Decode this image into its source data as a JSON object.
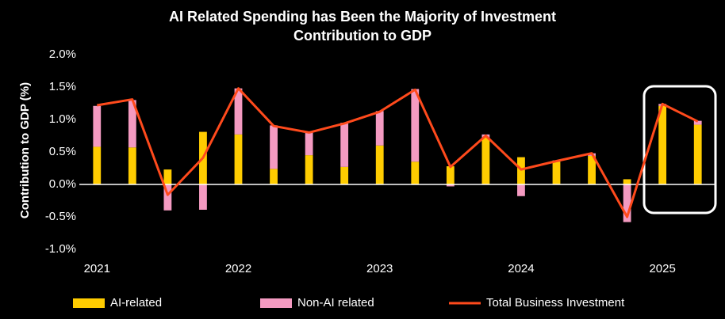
{
  "chart_data": {
    "type": "bar",
    "title": [
      "AI Related Spending has Been the Majority of Investment",
      "Contribution to GDP"
    ],
    "y_label": "Contribution to GDP (%)",
    "categories": [
      "2021",
      null,
      null,
      null,
      "2022",
      null,
      null,
      null,
      "2023",
      null,
      null,
      null,
      "2024",
      null,
      null,
      null,
      "2025",
      null
    ],
    "ylim": [
      -1.0,
      2.0
    ],
    "yticks": [
      {
        "value": -1.0,
        "label": "-1.0%"
      },
      {
        "value": -0.5,
        "label": "-0.5%"
      },
      {
        "value": 0.0,
        "label": "0.0%"
      },
      {
        "value": 0.5,
        "label": "0.5%"
      },
      {
        "value": 1.0,
        "label": "1.0%"
      },
      {
        "value": 1.5,
        "label": "1.5%"
      },
      {
        "value": 2.0,
        "label": "2.0%"
      }
    ],
    "stacked": true,
    "grid": false,
    "legend": "bottom",
    "series": [
      {
        "name": "AI-related",
        "type": "bar",
        "color": "#ffcc00",
        "values": [
          0.58,
          0.57,
          0.23,
          0.81,
          0.77,
          0.24,
          0.45,
          0.27,
          0.6,
          0.35,
          0.28,
          0.72,
          0.42,
          0.35,
          0.44,
          0.08,
          1.21,
          0.92
        ]
      },
      {
        "name": "Non-AI related",
        "type": "bar",
        "color": "#f49ac1",
        "values": [
          0.63,
          0.73,
          -0.4,
          -0.39,
          0.71,
          0.67,
          0.35,
          0.68,
          0.53,
          1.12,
          -0.03,
          0.05,
          -0.18,
          0.02,
          0.04,
          -0.58,
          0.03,
          0.06
        ]
      },
      {
        "name": "Total Business Investment",
        "type": "line",
        "color": "#ff4a1c",
        "values": [
          1.22,
          1.31,
          -0.16,
          0.41,
          1.48,
          0.9,
          0.8,
          0.94,
          1.12,
          1.46,
          0.27,
          0.75,
          0.23,
          0.36,
          0.48,
          -0.5,
          1.24,
          0.97
        ]
      }
    ]
  }
}
